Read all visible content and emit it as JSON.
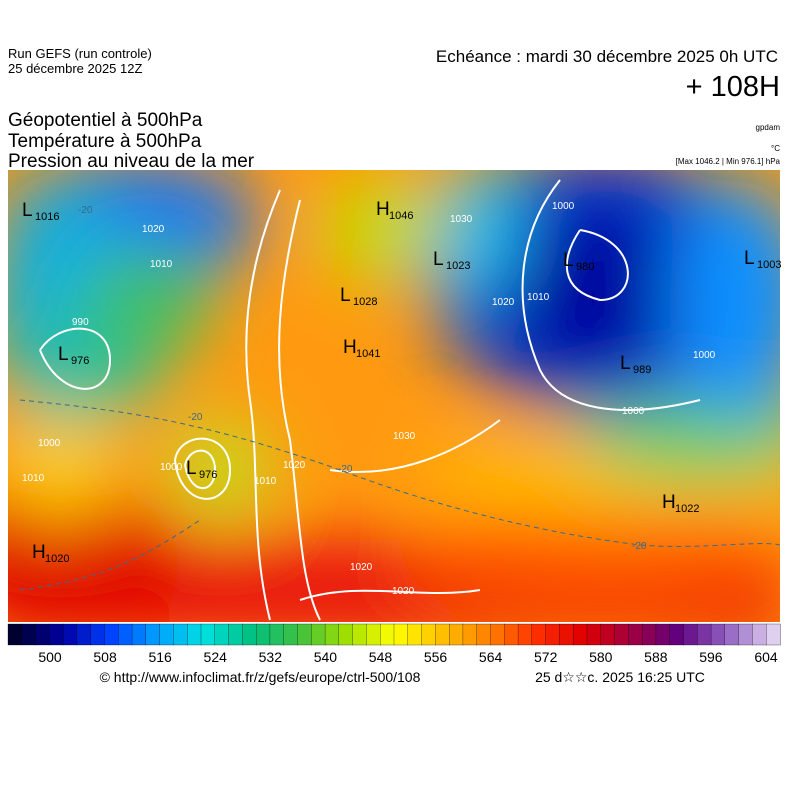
{
  "header": {
    "run": "Run GEFS (run controle)",
    "run_date": "25 décembre 2025 12Z",
    "valid": "Echéance : mardi 30 décembre 2025 0h UTC",
    "lead": "+ 108H",
    "field1": "Géopotentiel à 500hPa",
    "field2": "Température à 500hPa",
    "field3": "Pression au niveau de la mer",
    "unit1": "gpdam",
    "unit2": "°C",
    "range": "[Max 1046.2 | Min 976.1] hPa"
  },
  "centers": [
    {
      "type": "L",
      "value": "1016"
    },
    {
      "type": "H",
      "value": "1046"
    },
    {
      "type": "L",
      "value": "1023"
    },
    {
      "type": "L",
      "value": "980"
    },
    {
      "type": "L",
      "value": "1003"
    },
    {
      "type": "L",
      "value": "1028"
    },
    {
      "type": "H",
      "value": "1041"
    },
    {
      "type": "L",
      "value": "976"
    },
    {
      "type": "L",
      "value": "989"
    },
    {
      "type": "L",
      "value": "976"
    },
    {
      "type": "H",
      "value": "1022"
    },
    {
      "type": "H",
      "value": "1020"
    }
  ],
  "isobar_labels": [
    "1020",
    "1010",
    "990",
    "1000",
    "1010",
    "1000",
    "1010",
    "1020",
    "1030",
    "1030",
    "1020",
    "1010",
    "1000",
    "1000",
    "1000",
    "1020",
    "1020",
    "-20",
    "-20",
    "-20",
    "-20"
  ],
  "colorbar": {
    "ticks": [
      "500",
      "508",
      "516",
      "524",
      "532",
      "540",
      "548",
      "556",
      "564",
      "572",
      "580",
      "588",
      "596",
      "604"
    ]
  },
  "footer": {
    "url": "© http://www.infoclimat.fr/z/gefs/europe/ctrl-500/108",
    "generated": "25 d☆☆c. 2025 16:25 UTC"
  }
}
